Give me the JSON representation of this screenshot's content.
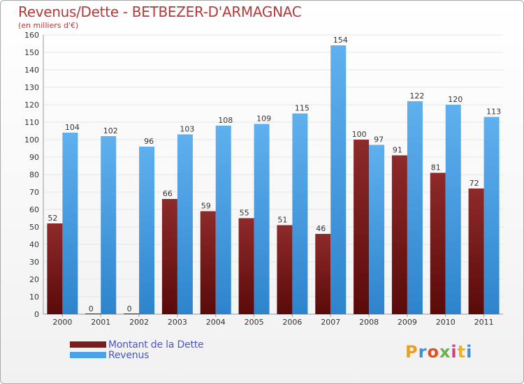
{
  "title": "Revenus/Dette - BETBEZER-D'ARMAGNAC",
  "subtitle": "(en milliers d'€)",
  "logo_text": "Proxiti",
  "colors": {
    "dette": "#7a1c1c",
    "revenus": "#4aa3e8",
    "title": "#b23a3a"
  },
  "chart_data": {
    "type": "bar",
    "categories": [
      "2000",
      "2001",
      "2002",
      "2003",
      "2004",
      "2005",
      "2006",
      "2007",
      "2008",
      "2009",
      "2010",
      "2011"
    ],
    "series": [
      {
        "name": "Montant de la Dette",
        "values": [
          52,
          0,
          0,
          66,
          59,
          55,
          51,
          46,
          100,
          91,
          81,
          72
        ]
      },
      {
        "name": "Revenus",
        "values": [
          104,
          102,
          96,
          103,
          108,
          109,
          115,
          154,
          97,
          122,
          120,
          113
        ]
      }
    ],
    "ylim": [
      0,
      160
    ],
    "yticks": [
      0,
      10,
      20,
      30,
      40,
      50,
      60,
      70,
      80,
      90,
      100,
      110,
      120,
      130,
      140,
      150,
      160
    ],
    "grid": true,
    "legend": "bottom-left"
  }
}
